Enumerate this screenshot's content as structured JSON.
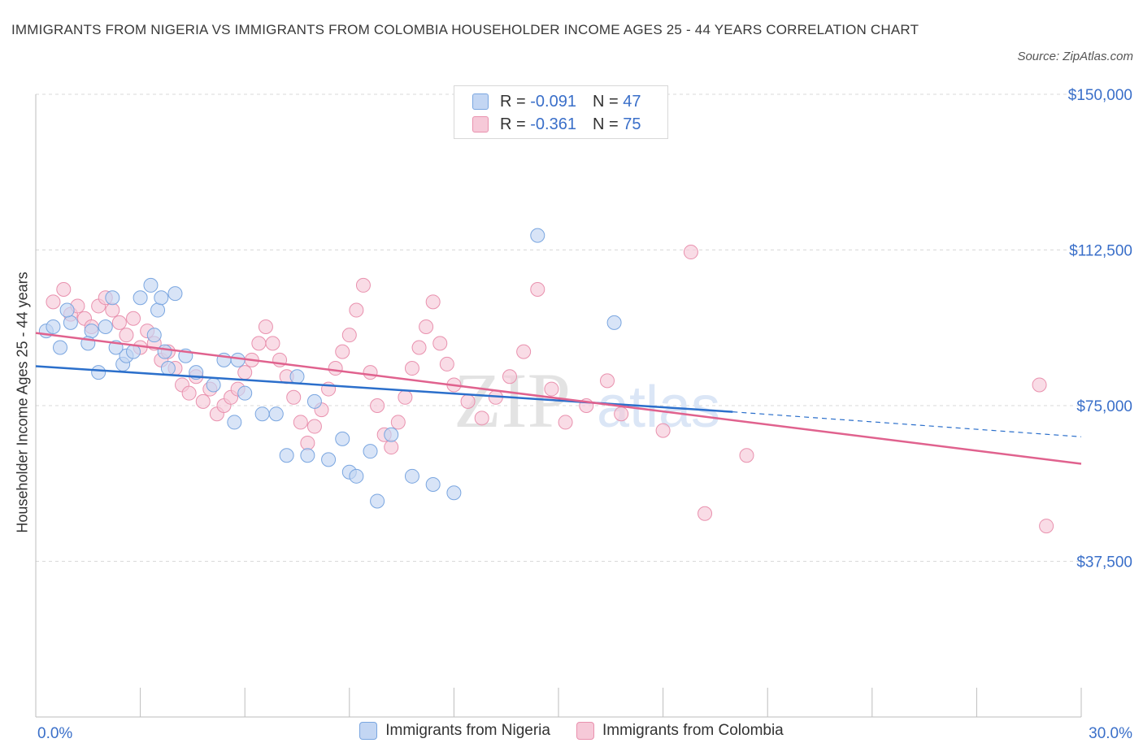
{
  "header": {
    "title": "IMMIGRANTS FROM NIGERIA VS IMMIGRANTS FROM COLOMBIA HOUSEHOLDER INCOME AGES 25 - 44 YEARS CORRELATION CHART",
    "source": "Source: ZipAtlas.com"
  },
  "legend_top": {
    "rows": [
      {
        "r_label": "R =",
        "r_value": "-0.091",
        "n_label": "N =",
        "n_value": "47"
      },
      {
        "r_label": "R =",
        "r_value": "-0.361",
        "n_label": "N =",
        "n_value": "75"
      }
    ]
  },
  "legend_bottom": {
    "nigeria": "Immigrants from Nigeria",
    "colombia": "Immigrants from Colombia"
  },
  "watermark": {
    "zip": "ZIP",
    "atlas": "atlas"
  },
  "chart_data": {
    "type": "scatter",
    "title": "IMMIGRANTS FROM NIGERIA VS IMMIGRANTS FROM COLOMBIA HOUSEHOLDER INCOME AGES 25 - 44 YEARS CORRELATION CHART",
    "xlabel": "",
    "ylabel": "Householder Income Ages 25 - 44 years",
    "xlim": [
      0,
      30
    ],
    "ylim": [
      0,
      150000
    ],
    "x_tick_labels": [
      "0.0%",
      "30.0%"
    ],
    "y_ticks": [
      37500,
      75000,
      112500,
      150000
    ],
    "y_tick_labels": [
      "$37,500",
      "$75,000",
      "$112,500",
      "$150,000"
    ],
    "grid": true,
    "colors": {
      "nigeria": "#7aa6e0",
      "nigeria_fill": "#c3d6f3",
      "nigeria_line": "#2b6fcb",
      "colombia": "#e991ae",
      "colombia_fill": "#f6c9d8",
      "colombia_line": "#e0628e",
      "tick_text": "#3a6fc9"
    },
    "series": [
      {
        "name": "Immigrants from Nigeria",
        "points": [
          [
            0.3,
            93000
          ],
          [
            0.5,
            94000
          ],
          [
            0.7,
            89000
          ],
          [
            1.0,
            95000
          ],
          [
            0.9,
            98000
          ],
          [
            1.6,
            93000
          ],
          [
            2.0,
            94000
          ],
          [
            2.5,
            85000
          ],
          [
            2.6,
            87000
          ],
          [
            1.5,
            90000
          ],
          [
            2.3,
            89000
          ],
          [
            1.8,
            83000
          ],
          [
            2.8,
            88000
          ],
          [
            3.4,
            92000
          ],
          [
            3.7,
            88000
          ],
          [
            3.5,
            98000
          ],
          [
            3.8,
            84000
          ],
          [
            4.3,
            87000
          ],
          [
            4.6,
            83000
          ],
          [
            5.1,
            80000
          ],
          [
            3.0,
            101000
          ],
          [
            3.3,
            104000
          ],
          [
            4.0,
            102000
          ],
          [
            3.6,
            101000
          ],
          [
            2.2,
            101000
          ],
          [
            5.8,
            86000
          ],
          [
            5.4,
            86000
          ],
          [
            5.7,
            71000
          ],
          [
            6.0,
            78000
          ],
          [
            6.5,
            73000
          ],
          [
            6.9,
            73000
          ],
          [
            7.5,
            82000
          ],
          [
            8.0,
            76000
          ],
          [
            7.2,
            63000
          ],
          [
            7.8,
            63000
          ],
          [
            8.4,
            62000
          ],
          [
            8.8,
            67000
          ],
          [
            9.0,
            59000
          ],
          [
            9.2,
            58000
          ],
          [
            9.8,
            52000
          ],
          [
            9.6,
            64000
          ],
          [
            10.2,
            68000
          ],
          [
            10.8,
            58000
          ],
          [
            11.4,
            56000
          ],
          [
            12.0,
            54000
          ],
          [
            16.6,
            95000
          ],
          [
            14.4,
            116000
          ]
        ],
        "trend": {
          "x": [
            0,
            20
          ],
          "y": [
            84500,
            73500
          ],
          "dashed_to": [
            30,
            67500
          ]
        }
      },
      {
        "name": "Immigrants from Colombia",
        "points": [
          [
            0.5,
            100000
          ],
          [
            0.8,
            103000
          ],
          [
            1.0,
            97000
          ],
          [
            1.2,
            99000
          ],
          [
            1.4,
            96000
          ],
          [
            1.6,
            94000
          ],
          [
            1.8,
            99000
          ],
          [
            2.0,
            101000
          ],
          [
            2.2,
            98000
          ],
          [
            2.4,
            95000
          ],
          [
            2.6,
            92000
          ],
          [
            2.8,
            96000
          ],
          [
            3.0,
            89000
          ],
          [
            3.2,
            93000
          ],
          [
            3.4,
            90000
          ],
          [
            3.6,
            86000
          ],
          [
            3.8,
            88000
          ],
          [
            4.0,
            84000
          ],
          [
            4.2,
            80000
          ],
          [
            4.4,
            78000
          ],
          [
            4.6,
            82000
          ],
          [
            4.8,
            76000
          ],
          [
            5.0,
            79000
          ],
          [
            5.2,
            73000
          ],
          [
            5.4,
            75000
          ],
          [
            5.6,
            77000
          ],
          [
            5.8,
            79000
          ],
          [
            6.0,
            83000
          ],
          [
            6.2,
            86000
          ],
          [
            6.4,
            90000
          ],
          [
            6.6,
            94000
          ],
          [
            6.8,
            90000
          ],
          [
            7.0,
            86000
          ],
          [
            7.2,
            82000
          ],
          [
            7.4,
            77000
          ],
          [
            7.6,
            71000
          ],
          [
            7.8,
            66000
          ],
          [
            8.0,
            70000
          ],
          [
            8.2,
            74000
          ],
          [
            8.4,
            79000
          ],
          [
            8.6,
            84000
          ],
          [
            8.8,
            88000
          ],
          [
            9.0,
            92000
          ],
          [
            9.2,
            98000
          ],
          [
            9.4,
            104000
          ],
          [
            9.6,
            83000
          ],
          [
            9.8,
            75000
          ],
          [
            10.0,
            68000
          ],
          [
            10.2,
            65000
          ],
          [
            10.4,
            71000
          ],
          [
            10.6,
            77000
          ],
          [
            10.8,
            84000
          ],
          [
            11.0,
            89000
          ],
          [
            11.2,
            94000
          ],
          [
            11.4,
            100000
          ],
          [
            11.6,
            90000
          ],
          [
            11.8,
            85000
          ],
          [
            12.0,
            80000
          ],
          [
            12.4,
            76000
          ],
          [
            12.8,
            72000
          ],
          [
            13.2,
            77000
          ],
          [
            13.6,
            82000
          ],
          [
            14.0,
            88000
          ],
          [
            14.4,
            103000
          ],
          [
            14.8,
            79000
          ],
          [
            15.2,
            71000
          ],
          [
            15.8,
            75000
          ],
          [
            16.4,
            81000
          ],
          [
            16.8,
            73000
          ],
          [
            18.0,
            69000
          ],
          [
            18.8,
            112000
          ],
          [
            19.2,
            49000
          ],
          [
            20.4,
            63000
          ],
          [
            28.8,
            80000
          ],
          [
            29.0,
            46000
          ]
        ],
        "trend": {
          "x": [
            0,
            30
          ],
          "y": [
            92500,
            61000
          ]
        }
      }
    ]
  }
}
